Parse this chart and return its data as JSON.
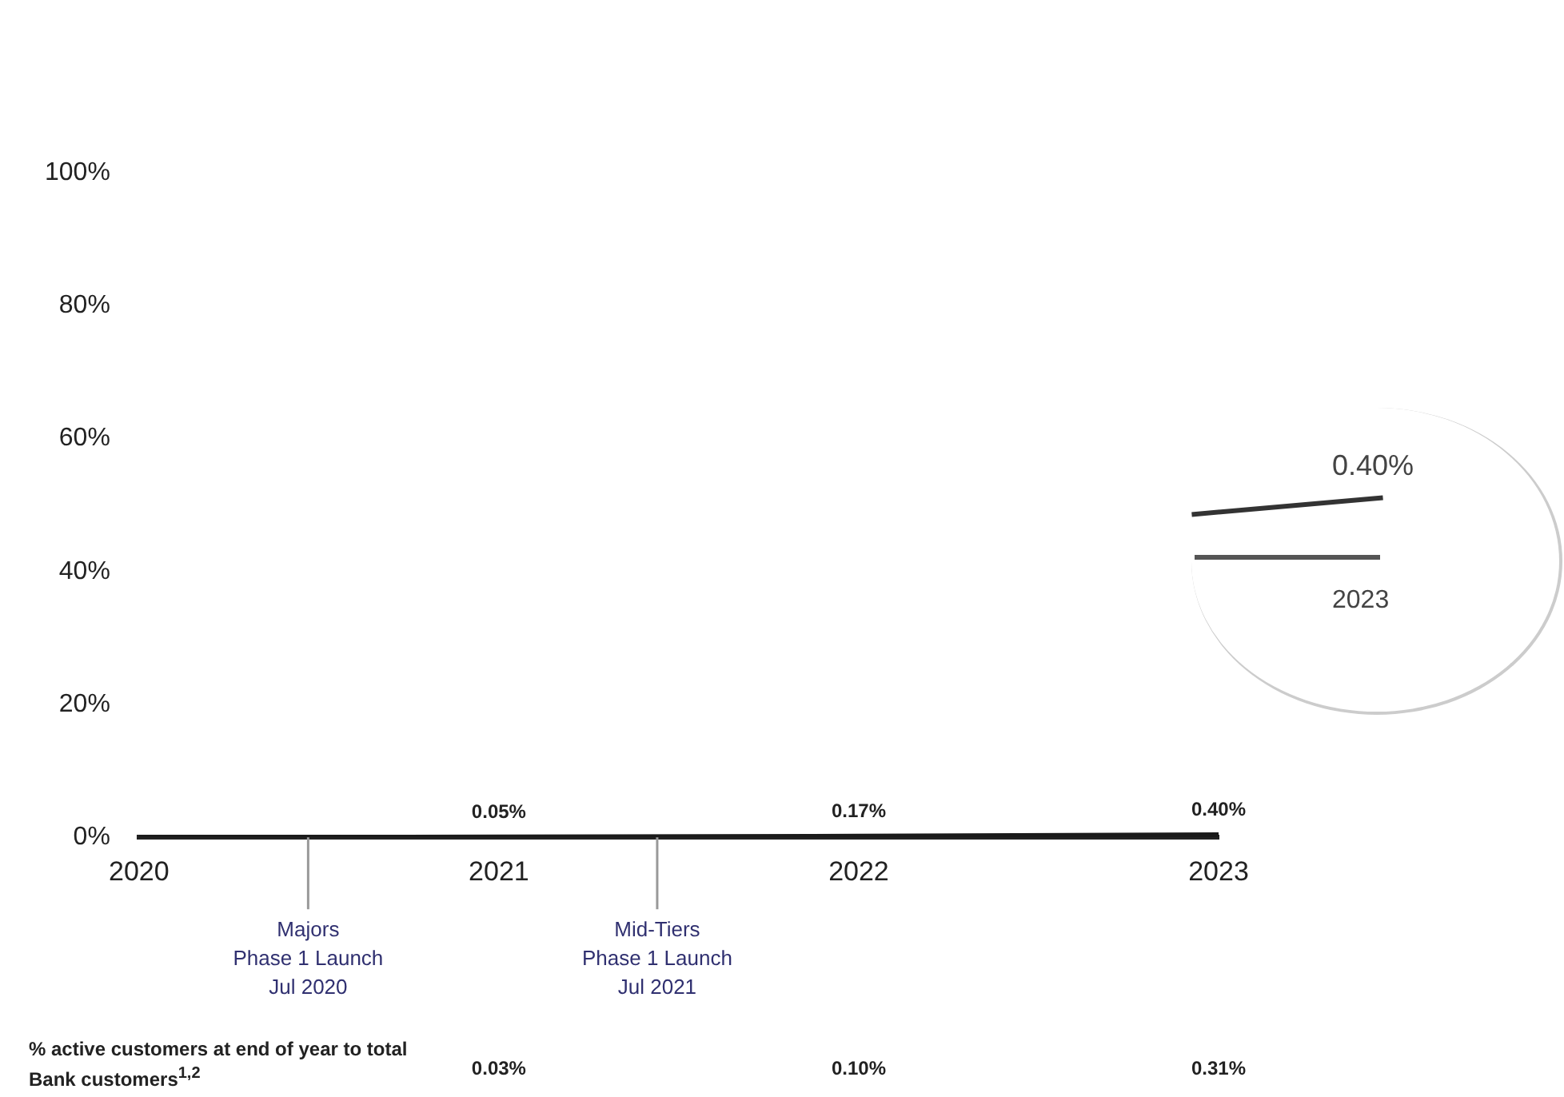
{
  "chart_data": {
    "type": "line",
    "x": [
      2020,
      2021,
      2022,
      2023
    ],
    "series": [
      {
        "color": "#1a1a1a",
        "values": [
          0,
          0.05,
          0.17,
          0.4
        ],
        "value_labels": [
          null,
          "0.05%",
          "0.17%",
          "0.40%"
        ]
      }
    ],
    "xlim": [
      2020,
      2023
    ],
    "xticks": [
      2020,
      2021,
      2022,
      2023
    ],
    "ylim": [
      0,
      100
    ],
    "yticks": [
      {
        "value": 0,
        "label": "0%"
      },
      {
        "value": 20,
        "label": "20%"
      },
      {
        "value": 40,
        "label": "40%"
      },
      {
        "value": 60,
        "label": "60%"
      },
      {
        "value": 80,
        "label": "80%"
      },
      {
        "value": 100,
        "label": "100%"
      }
    ],
    "grid": false,
    "legend": false,
    "marker": "none",
    "line_style": "solid",
    "annotations": [
      "% active customers at end of year to total Bank customers$^{1,2}$",
      {
        "text": "Majors Phase 1 Launch Jul 2020",
        "x": 2020.47,
        "y": 0
      },
      {
        "text": "Mid-Tiers Phase 1 Launch Jul 2021",
        "x": 2021.44,
        "y": 0
      },
      "0.03%",
      "0.10%",
      "0.31%",
      "0.40%",
      "2023"
    ]
  }
}
